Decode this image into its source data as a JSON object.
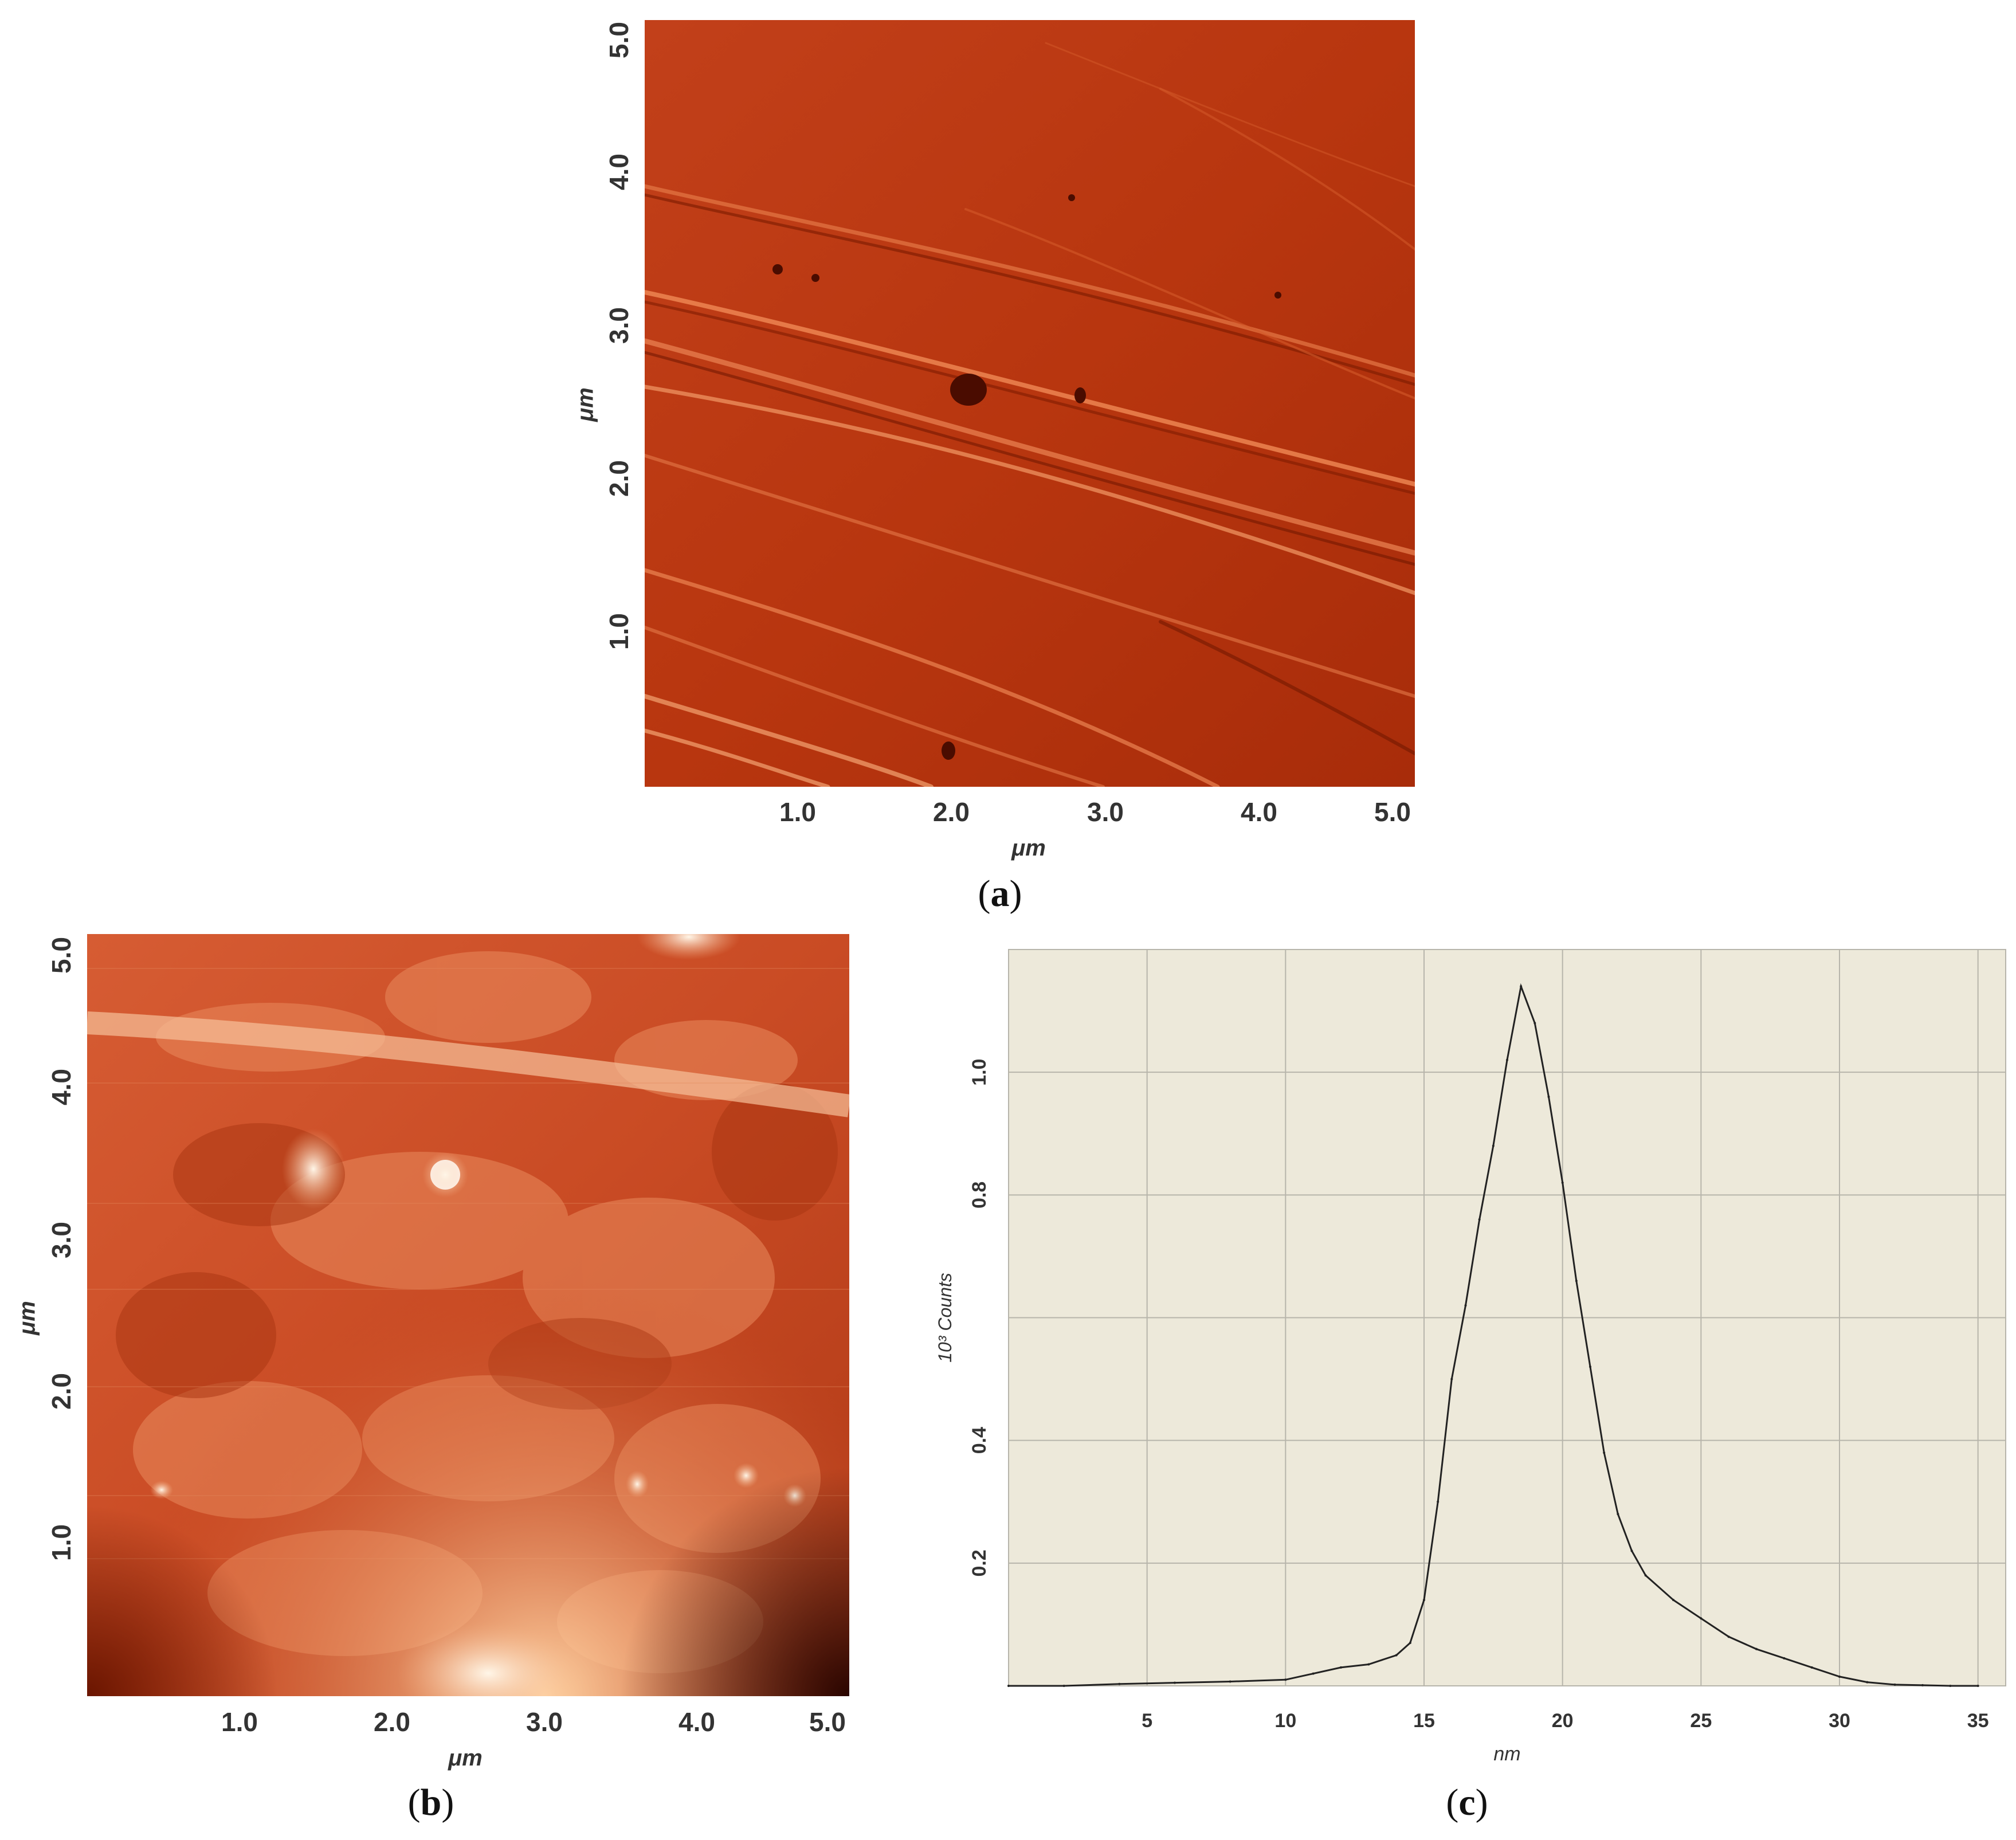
{
  "panels": {
    "a": {
      "label_open": "(",
      "label_letter": "a",
      "label_close": ")",
      "x_unit": "μm",
      "y_unit": "μm",
      "x_ticks": [
        "1.0",
        "2.0",
        "3.0",
        "4.0",
        "5.0"
      ],
      "y_ticks": [
        "1.0",
        "2.0",
        "3.0",
        "4.0",
        "5.0"
      ],
      "image_description": "AFM amplitude image, red-orange colormap"
    },
    "b": {
      "label_open": "(",
      "label_letter": "b",
      "label_close": ")",
      "x_unit": "μm",
      "y_unit": "μm",
      "x_ticks": [
        "1.0",
        "2.0",
        "3.0",
        "4.0",
        "5.0"
      ],
      "y_ticks": [
        "1.0",
        "2.0",
        "3.0",
        "4.0",
        "5.0"
      ]
    },
    "c": {
      "label_open": "(",
      "label_letter": "c",
      "label_close": ")"
    }
  },
  "colors": {
    "afm_dark": "#8a1d00",
    "afm_mid": "#c7401a",
    "afm_light": "#ffd0a0",
    "hist_bg": "#ede9da",
    "hist_grid": "#b7b5ab",
    "hist_line": "#222222"
  },
  "chart_data": {
    "type": "line",
    "xlabel": "nm",
    "ylabel": "10³ Counts",
    "x_ticks": [
      "5",
      "10",
      "15",
      "20",
      "25",
      "30",
      "35"
    ],
    "y_ticks": [
      "0.2",
      "0.4",
      "0.8",
      "1.0"
    ],
    "xlim": [
      0,
      36
    ],
    "ylim": [
      0,
      1.2
    ],
    "grid": true,
    "series": [
      {
        "x": [
          0,
          2,
          4,
          6,
          8,
          10,
          11,
          12,
          13,
          14,
          14.5,
          15,
          15.5,
          16,
          16.5,
          17,
          17.5,
          18,
          18.5,
          19,
          19.5,
          20,
          20.5,
          21,
          21.5,
          22,
          22.5,
          23,
          24,
          25,
          26,
          27,
          28,
          29,
          30,
          31,
          32,
          33,
          34,
          35
        ],
        "y": [
          0.0,
          0.0,
          0.003,
          0.005,
          0.007,
          0.01,
          0.02,
          0.03,
          0.035,
          0.05,
          0.07,
          0.14,
          0.3,
          0.5,
          0.62,
          0.76,
          0.88,
          1.02,
          1.14,
          1.08,
          0.96,
          0.82,
          0.66,
          0.52,
          0.38,
          0.28,
          0.22,
          0.18,
          0.14,
          0.11,
          0.08,
          0.06,
          0.045,
          0.03,
          0.015,
          0.006,
          0.002,
          0.001,
          0.0,
          0.0
        ]
      }
    ]
  }
}
